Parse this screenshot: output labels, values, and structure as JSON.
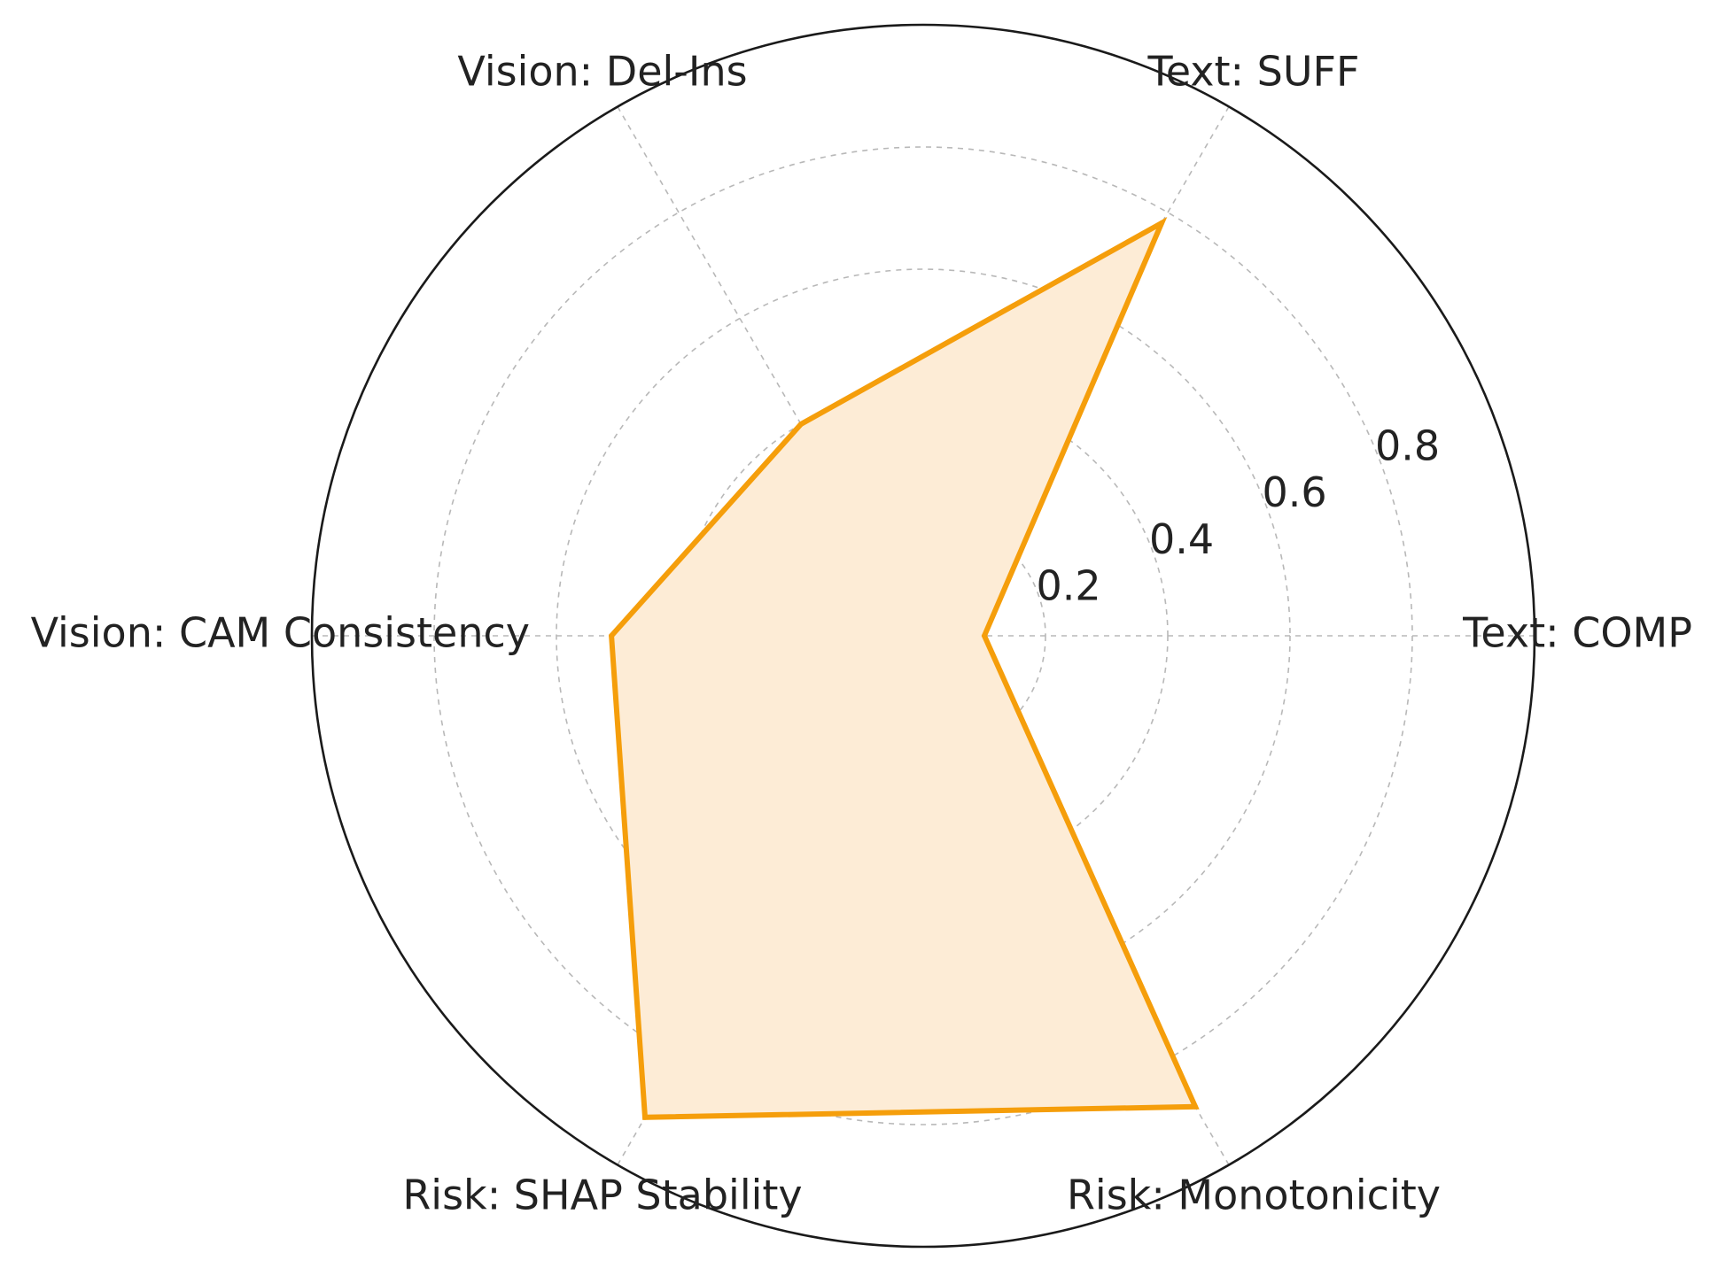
{
  "chart_data": {
    "type": "radar",
    "title": "",
    "axes": [
      "Text: COMP",
      "Text: SUFF",
      "Vision: Del-Ins",
      "Vision: CAM Consistency",
      "Risk: SHAP Stability",
      "Risk: Monotonicity"
    ],
    "series": [
      {
        "values": [
          0.1,
          0.78,
          0.4,
          0.51,
          0.91,
          0.89
        ],
        "color": "#f59e0b",
        "fill": "#fdecd6"
      }
    ],
    "rlim": [
      0,
      1.0
    ],
    "radial_ticks": [
      0.2,
      0.4,
      0.6,
      0.8
    ],
    "radial_tick_labels": [
      "0.2",
      "0.4",
      "0.6",
      "0.8"
    ],
    "grid": true
  }
}
